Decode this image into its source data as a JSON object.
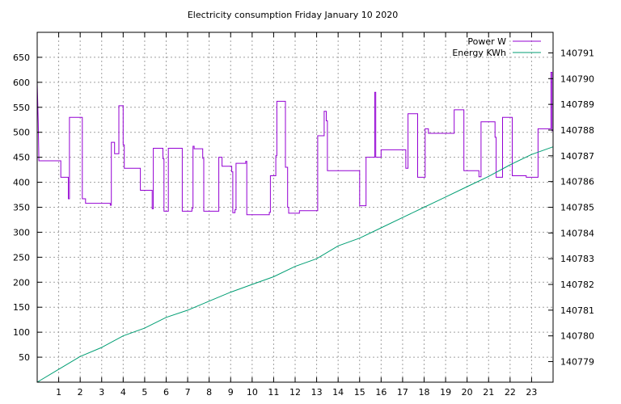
{
  "colors": {
    "power": "#9400d3",
    "energy": "#009e73",
    "grid": "#a0a0a0",
    "axis": "#000000"
  },
  "chart_data": {
    "type": "line",
    "title": "Electricity consumption Friday January 10 2020",
    "xlabel": "",
    "ylabel": "",
    "y2label": "",
    "xlim": [
      0,
      24
    ],
    "ylim": [
      0,
      700
    ],
    "y2lim": [
      140778.2,
      140791.8
    ],
    "x_ticks": [
      1,
      2,
      3,
      4,
      5,
      6,
      7,
      8,
      9,
      10,
      11,
      12,
      13,
      14,
      15,
      16,
      17,
      18,
      19,
      20,
      21,
      22,
      23
    ],
    "y_ticks": [
      50,
      100,
      150,
      200,
      250,
      300,
      350,
      400,
      450,
      500,
      550,
      600,
      650
    ],
    "y2_ticks": [
      140779,
      140780,
      140781,
      140782,
      140783,
      140784,
      140785,
      140786,
      140787,
      140788,
      140789,
      140790,
      140791
    ],
    "grid": true,
    "legend_position": "top-right",
    "series": [
      {
        "name": "Power W",
        "axis": "y1",
        "step": true,
        "color_key": "power",
        "points": [
          [
            0.0,
            600
          ],
          [
            0.05,
            520
          ],
          [
            0.08,
            443
          ],
          [
            1.1,
            443
          ],
          [
            1.1,
            410
          ],
          [
            1.45,
            410
          ],
          [
            1.45,
            367
          ],
          [
            1.5,
            367
          ],
          [
            1.5,
            530
          ],
          [
            2.1,
            530
          ],
          [
            2.1,
            367
          ],
          [
            2.25,
            367
          ],
          [
            2.25,
            358
          ],
          [
            3.4,
            358
          ],
          [
            3.4,
            354
          ],
          [
            3.45,
            354
          ],
          [
            3.45,
            480
          ],
          [
            3.6,
            480
          ],
          [
            3.6,
            457
          ],
          [
            3.8,
            457
          ],
          [
            3.8,
            553
          ],
          [
            4.0,
            553
          ],
          [
            4.0,
            475
          ],
          [
            4.05,
            475
          ],
          [
            4.05,
            428
          ],
          [
            4.8,
            428
          ],
          [
            4.8,
            384
          ],
          [
            5.35,
            384
          ],
          [
            5.35,
            347
          ],
          [
            5.4,
            347
          ],
          [
            5.4,
            468
          ],
          [
            5.85,
            468
          ],
          [
            5.85,
            447
          ],
          [
            5.9,
            447
          ],
          [
            5.9,
            342
          ],
          [
            6.1,
            342
          ],
          [
            6.1,
            468
          ],
          [
            6.75,
            468
          ],
          [
            6.75,
            342
          ],
          [
            7.2,
            342
          ],
          [
            7.2,
            348
          ],
          [
            7.25,
            348
          ],
          [
            7.25,
            472
          ],
          [
            7.3,
            472
          ],
          [
            7.3,
            467
          ],
          [
            7.7,
            467
          ],
          [
            7.7,
            448
          ],
          [
            7.75,
            448
          ],
          [
            7.75,
            342
          ],
          [
            8.45,
            342
          ],
          [
            8.45,
            450
          ],
          [
            8.6,
            450
          ],
          [
            8.6,
            432
          ],
          [
            9.05,
            432
          ],
          [
            9.05,
            421
          ],
          [
            9.1,
            421
          ],
          [
            9.1,
            339
          ],
          [
            9.2,
            339
          ],
          [
            9.2,
            345
          ],
          [
            9.25,
            345
          ],
          [
            9.25,
            438
          ],
          [
            9.7,
            438
          ],
          [
            9.7,
            442
          ],
          [
            9.75,
            442
          ],
          [
            9.75,
            335
          ],
          [
            10.8,
            335
          ],
          [
            10.8,
            340
          ],
          [
            10.85,
            340
          ],
          [
            10.85,
            413
          ],
          [
            11.1,
            413
          ],
          [
            11.1,
            453
          ],
          [
            11.15,
            453
          ],
          [
            11.15,
            562
          ],
          [
            11.55,
            562
          ],
          [
            11.55,
            430
          ],
          [
            11.65,
            430
          ],
          [
            11.65,
            350
          ],
          [
            11.7,
            350
          ],
          [
            11.7,
            338
          ],
          [
            12.2,
            338
          ],
          [
            12.2,
            343
          ],
          [
            13.05,
            343
          ],
          [
            13.05,
            493
          ],
          [
            13.35,
            493
          ],
          [
            13.35,
            542
          ],
          [
            13.45,
            542
          ],
          [
            13.45,
            523
          ],
          [
            13.5,
            523
          ],
          [
            13.5,
            423
          ],
          [
            15.0,
            423
          ],
          [
            15.0,
            353
          ],
          [
            15.3,
            353
          ],
          [
            15.3,
            450
          ],
          [
            15.7,
            450
          ],
          [
            15.7,
            580
          ],
          [
            15.75,
            580
          ],
          [
            15.75,
            450
          ],
          [
            16.0,
            450
          ],
          [
            16.0,
            465
          ],
          [
            17.15,
            465
          ],
          [
            17.15,
            428
          ],
          [
            17.25,
            428
          ],
          [
            17.25,
            537
          ],
          [
            17.7,
            537
          ],
          [
            17.7,
            410
          ],
          [
            18.05,
            410
          ],
          [
            18.05,
            507
          ],
          [
            18.2,
            507
          ],
          [
            18.2,
            498
          ],
          [
            19.4,
            498
          ],
          [
            19.4,
            545
          ],
          [
            19.85,
            545
          ],
          [
            19.85,
            423
          ],
          [
            20.55,
            423
          ],
          [
            20.55,
            411
          ],
          [
            20.65,
            411
          ],
          [
            20.65,
            521
          ],
          [
            21.3,
            521
          ],
          [
            21.3,
            490
          ],
          [
            21.35,
            490
          ],
          [
            21.35,
            410
          ],
          [
            21.65,
            410
          ],
          [
            21.65,
            530
          ],
          [
            22.1,
            530
          ],
          [
            22.1,
            413
          ],
          [
            22.75,
            413
          ],
          [
            22.75,
            410
          ],
          [
            23.3,
            410
          ],
          [
            23.3,
            507
          ],
          [
            23.9,
            507
          ],
          [
            23.9,
            620
          ],
          [
            23.95,
            620
          ],
          [
            23.95,
            503
          ],
          [
            24.0,
            503
          ]
        ]
      },
      {
        "name": "Energy KWh",
        "axis": "y2",
        "step": false,
        "color_key": "energy",
        "points": [
          [
            0.0,
            140778.2
          ],
          [
            1.0,
            140778.7
          ],
          [
            2.0,
            140779.2
          ],
          [
            3.0,
            140779.55
          ],
          [
            4.0,
            140780.0
          ],
          [
            5.0,
            140780.3
          ],
          [
            6.0,
            140780.72
          ],
          [
            7.0,
            140781.0
          ],
          [
            8.0,
            140781.35
          ],
          [
            9.0,
            140781.7
          ],
          [
            10.0,
            140782.0
          ],
          [
            11.0,
            140782.3
          ],
          [
            12.0,
            140782.7
          ],
          [
            13.0,
            140783.0
          ],
          [
            14.0,
            140783.5
          ],
          [
            15.0,
            140783.8
          ],
          [
            16.0,
            140784.2
          ],
          [
            17.0,
            140784.6
          ],
          [
            18.0,
            140785.0
          ],
          [
            19.0,
            140785.4
          ],
          [
            20.0,
            140785.8
          ],
          [
            21.0,
            140786.2
          ],
          [
            22.0,
            140786.65
          ],
          [
            23.0,
            140787.05
          ],
          [
            24.0,
            140787.35
          ]
        ]
      }
    ]
  }
}
